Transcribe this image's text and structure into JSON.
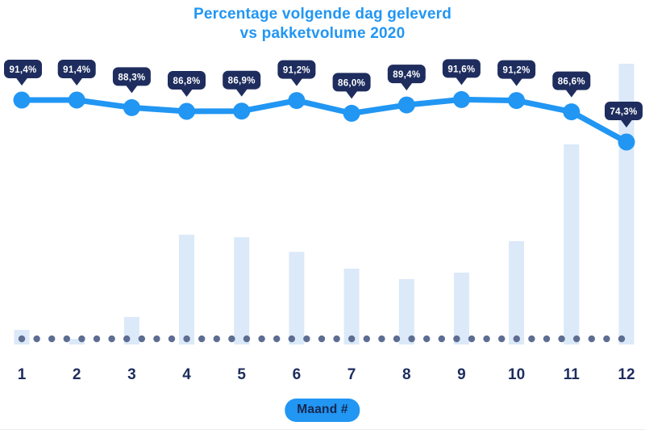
{
  "chart": {
    "title_line1": "Percentage volgende dag geleverd",
    "title_line2": "vs pakketvolume 2020",
    "x_axis_label": "Maand #"
  },
  "chart_data": {
    "type": "combo",
    "title": "Percentage volgende dag geleverd vs pakketvolume 2020",
    "xlabel": "Maand #",
    "x_tick_labels": [
      "1",
      "2",
      "3",
      "4",
      "5",
      "6",
      "7",
      "8",
      "9",
      "10",
      "11",
      "12"
    ],
    "grid": false,
    "legend": "none",
    "series": [
      {
        "name": "Percentage volgende dag geleverd",
        "type": "line",
        "x": [
          1,
          2,
          3,
          4,
          5,
          6,
          7,
          8,
          9,
          10,
          11,
          12
        ],
        "values": [
          91.4,
          91.4,
          88.3,
          86.8,
          86.9,
          91.2,
          86.0,
          89.4,
          91.6,
          91.2,
          86.6,
          74.3
        ],
        "point_labels": [
          "91,4%",
          "91,4%",
          "88,3%",
          "86,8%",
          "86,9%",
          "91,2%",
          "86,0%",
          "89,4%",
          "91,6%",
          "91,2%",
          "86,6%",
          "74,3%"
        ],
        "label_style": "navy callout bubble above each point"
      },
      {
        "name": "pakketvolume",
        "type": "bar",
        "x": [
          1,
          2,
          3,
          4,
          5,
          6,
          7,
          8,
          9,
          10,
          11,
          12
        ],
        "values_relative_pct_of_max": [
          5.2,
          2.0,
          9.8,
          39.1,
          38.2,
          33.0,
          27.0,
          23.3,
          25.6,
          36.8,
          71.3,
          100
        ],
        "axis": "none shown; bar heights relative to month 12 maximum"
      }
    ],
    "baseline": "horizontal dotted row at zero line"
  },
  "colors": {
    "accent_blue": "#2196f3",
    "navy": "#1e2d5e",
    "bar_fill": "#dbe9f9",
    "baseline_dot": "#5d6d92",
    "tooltip_text": "#ffffff",
    "background": "#ffffff"
  }
}
